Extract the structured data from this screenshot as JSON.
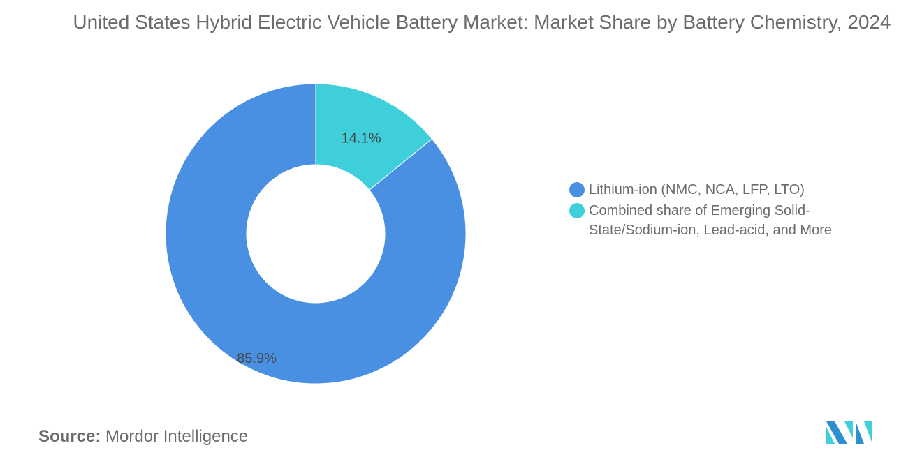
{
  "chart_data": {
    "type": "pie",
    "variant": "donut",
    "title": "United States Hybrid Electric Vehicle Battery Market: Market Share by Battery Chemistry, 2024",
    "categories": [
      "Combined share of Emerging Solid-State/Sodium-ion, Lead-acid, and More",
      "Lithium-ion (NMC, NCA, LFP, LTO)"
    ],
    "values": [
      14.1,
      85.9
    ],
    "labels": [
      "14.1%",
      "85.9%"
    ],
    "colors": [
      "#3fcfda",
      "#4a90e2"
    ],
    "legend": {
      "placement": "right",
      "entries": [
        {
          "label": "Lithium-ion (NMC, NCA, LFP, LTO)",
          "color": "#4a90e2"
        },
        {
          "label": "Combined share of Emerging Solid-State/Sodium-ion, Lead-acid, and More",
          "color": "#3fcfda"
        }
      ]
    }
  },
  "source": {
    "label": "Source:",
    "value": "Mordor Intelligence"
  },
  "logo": {
    "colors": [
      "#2d8fcf",
      "#3fcfda"
    ]
  }
}
